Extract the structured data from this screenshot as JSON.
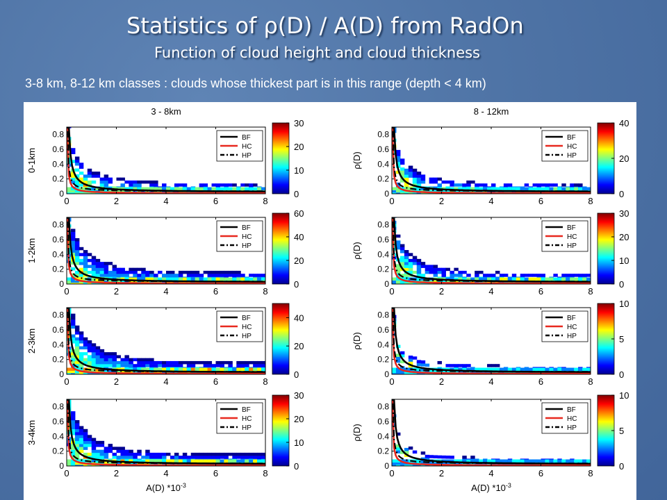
{
  "slide": {
    "title": "Statistics of ρ(D) / A(D) from RadOn",
    "subtitle": "Function of cloud height and cloud thickness",
    "caption": "3-8 km, 8-12 km classes : clouds whose thickest part is in this range (depth < 4 km)"
  },
  "chart_data": {
    "type": "heatmap",
    "description_of_lines": "Each panel: 2D histogram of rho(D) vs A(D) with three fitted curves",
    "columns": [
      {
        "title": "3 - 8km"
      },
      {
        "title": "8 - 12km"
      }
    ],
    "xlabel": "A(D) *10",
    "xlabel_exp": "-3",
    "ylabel": "ρ(D)",
    "xlim": [
      0,
      8
    ],
    "ylim": [
      0,
      0.9
    ],
    "x_ticks": [
      "0",
      "2",
      "4",
      "6",
      "8"
    ],
    "y_ticks": [
      "0",
      "0.2",
      "0.4",
      "0.6",
      "0.8"
    ],
    "legend": {
      "placement": "top-right",
      "entries": [
        {
          "label": "BF",
          "color": "#000000",
          "style": "solid"
        },
        {
          "label": "HC",
          "color": "#e8281e",
          "style": "solid"
        },
        {
          "label": "HP",
          "color": "#000000",
          "style": "dashdot"
        }
      ]
    },
    "curves": {
      "BF": {
        "a": 0.08,
        "b": 0.02
      },
      "HC": {
        "a": 0.022,
        "b": 0.005
      },
      "HP": {
        "a": 0.03,
        "b": 0.03
      }
    },
    "colormap": [
      "#00008f",
      "#0000ff",
      "#0080ff",
      "#00ffff",
      "#80ff80",
      "#ffff00",
      "#ff8000",
      "#ff0000",
      "#800000"
    ],
    "panels": [
      {
        "row": 0,
        "col": 0,
        "row_label": "0-1km",
        "colorbar_max": 30,
        "colorbar_ticks": [
          "30",
          "20",
          "10",
          "0"
        ],
        "density": 0.6
      },
      {
        "row": 0,
        "col": 1,
        "row_label": "ρ(D)",
        "colorbar_max": 40,
        "colorbar_ticks": [
          "40",
          "20",
          "0"
        ],
        "density": 0.55
      },
      {
        "row": 1,
        "col": 0,
        "row_label": "1-2km",
        "colorbar_max": 60,
        "colorbar_ticks": [
          "60",
          "40",
          "20",
          "0"
        ],
        "density": 0.85
      },
      {
        "row": 1,
        "col": 1,
        "row_label": "ρ(D)",
        "colorbar_max": 30,
        "colorbar_ticks": [
          "30",
          "20",
          "10",
          "0"
        ],
        "density": 0.7
      },
      {
        "row": 2,
        "col": 0,
        "row_label": "2-3km",
        "colorbar_max": 50,
        "colorbar_ticks": [
          "40",
          "20",
          "0"
        ],
        "density": 0.95
      },
      {
        "row": 2,
        "col": 1,
        "row_label": "ρ(D)",
        "colorbar_max": 10,
        "colorbar_ticks": [
          "10",
          "5",
          "0"
        ],
        "density": 0.25
      },
      {
        "row": 3,
        "col": 0,
        "row_label": "3-4km",
        "colorbar_max": 30,
        "colorbar_ticks": [
          "30",
          "20",
          "10",
          "0"
        ],
        "density": 0.9
      },
      {
        "row": 3,
        "col": 1,
        "row_label": "ρ(D)",
        "colorbar_max": 10,
        "colorbar_ticks": [
          "10",
          "5",
          "0"
        ],
        "density": 0.2
      }
    ]
  }
}
